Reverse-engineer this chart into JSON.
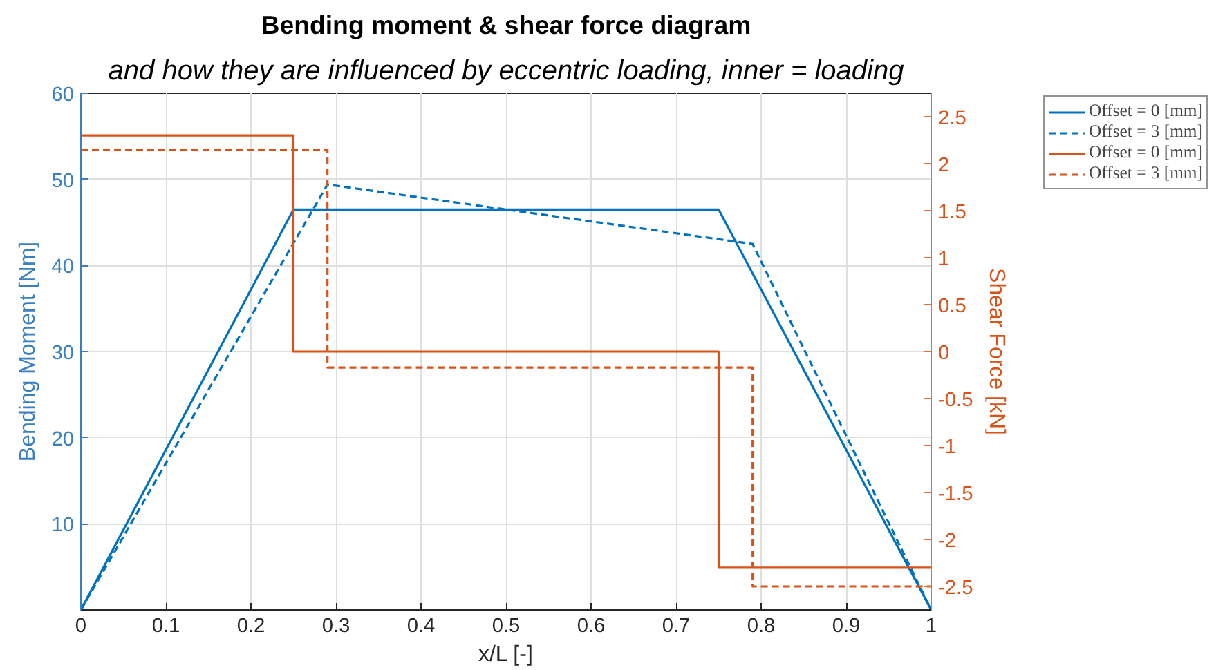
{
  "chart_data": {
    "type": "line",
    "title": "Bending moment & shear force diagram",
    "subtitle": "and how they are influenced by eccentric loading, inner = loading",
    "xlabel": "x/L [-]",
    "ylabel": "Bending Moment [Nm]",
    "y2label": "Shear Force [kN]",
    "xlim": [
      0,
      1
    ],
    "xticks": [
      0,
      0.1,
      0.2,
      0.3,
      0.4,
      0.5,
      0.6,
      0.7,
      0.8,
      0.9,
      1
    ],
    "ylim": [
      0,
      60
    ],
    "yticks": [
      10,
      20,
      30,
      40,
      50,
      60
    ],
    "y2lim": [
      -2.75,
      2.75
    ],
    "y2ticks": [
      -2.5,
      -2,
      -1.5,
      -1,
      -0.5,
      0,
      0.5,
      1,
      1.5,
      2,
      2.5
    ],
    "grid": true,
    "legend": "top right",
    "series": [
      {
        "name": "Offset = 0 [mm]",
        "color": "#0072bd",
        "line_style": "solid",
        "x": [
          0,
          0.25,
          0.75,
          1
        ],
        "values": [
          0,
          46.5,
          46.5,
          0
        ]
      },
      {
        "name": "Offset = 3 [mm]",
        "color": "#0072bd",
        "line_style": "dashed",
        "x": [
          0,
          0.29,
          0.79,
          1
        ],
        "values": [
          0,
          49.4,
          42.5,
          0
        ]
      },
      {
        "name": "Offset = 0 [mm]",
        "color": "#d95319",
        "type": "step",
        "axis": "y2",
        "line_style": "solid",
        "x": [
          0,
          0.25,
          0.75,
          1
        ],
        "values": [
          2.3,
          0,
          -2.3,
          -2.3
        ]
      },
      {
        "name": "Offset = 3 [mm]",
        "color": "#d95319",
        "type": "step",
        "axis": "y2",
        "line_style": "dashed",
        "x": [
          0,
          0.29,
          0.79,
          1
        ],
        "values": [
          2.15,
          -0.17,
          -2.5,
          -2.5
        ]
      }
    ]
  }
}
